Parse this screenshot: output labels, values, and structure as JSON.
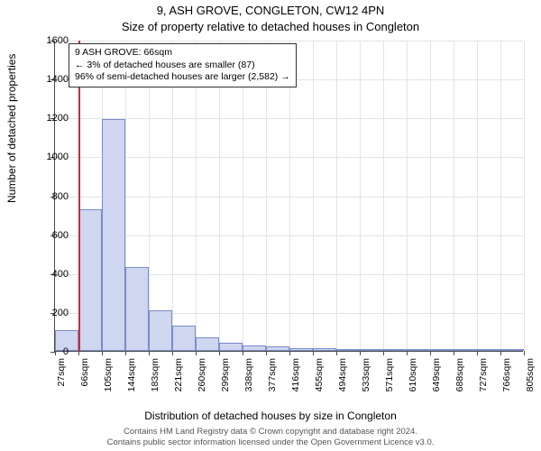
{
  "titles": {
    "main": "9, ASH GROVE, CONGLETON, CW12 4PN",
    "sub": "Size of property relative to detached houses in Congleton"
  },
  "axes": {
    "ylabel": "Number of detached properties",
    "xlabel": "Distribution of detached houses by size in Congleton"
  },
  "annotation": {
    "line1": "9 ASH GROVE: 66sqm",
    "line2": "← 3% of detached houses are smaller (87)",
    "line3": "96% of semi-detached houses are larger (2,582) →"
  },
  "footnote": {
    "line1": "Contains HM Land Registry data © Crown copyright and database right 2024.",
    "line2": "Contains public sector information licensed under the Open Government Licence v3.0."
  },
  "chart": {
    "type": "histogram",
    "ylim": [
      0,
      1600
    ],
    "ytick_step": 200,
    "yticks": [
      0,
      200,
      400,
      600,
      800,
      1000,
      1200,
      1400,
      1600
    ],
    "xtick_labels": [
      "27sqm",
      "66sqm",
      "105sqm",
      "144sqm",
      "183sqm",
      "221sqm",
      "260sqm",
      "299sqm",
      "338sqm",
      "377sqm",
      "416sqm",
      "455sqm",
      "494sqm",
      "533sqm",
      "571sqm",
      "610sqm",
      "649sqm",
      "688sqm",
      "727sqm",
      "766sqm",
      "805sqm"
    ],
    "bar_values": [
      105,
      730,
      1190,
      430,
      210,
      130,
      70,
      40,
      30,
      25,
      15,
      12,
      8,
      5,
      3,
      2,
      2,
      1,
      1,
      1
    ],
    "bar_fill": "#cfd6ef",
    "bar_stroke": "#7a8bc7",
    "grid_color": "#e2e4ec",
    "axis_color": "#4a4a4a",
    "background": "#ffffff",
    "marker_color": "#d62728",
    "marker_x_sqm": 66,
    "x_domain": [
      27,
      805
    ],
    "label_fontsize": 12,
    "tick_fontsize": 11
  }
}
